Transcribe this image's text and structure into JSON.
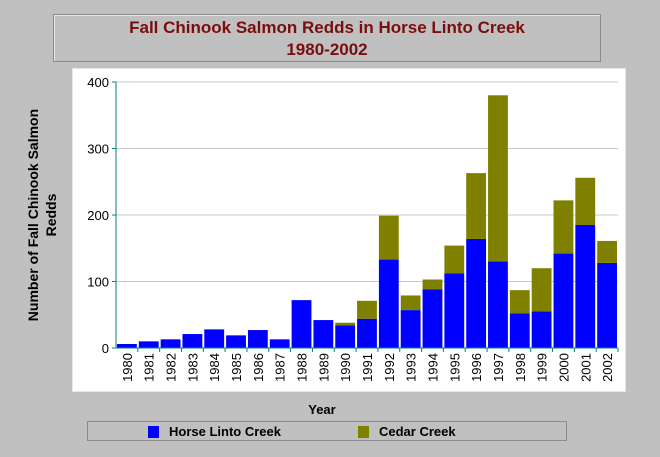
{
  "chart_data": {
    "type": "bar",
    "stacked": true,
    "title": "Fall Chinook Salmon Redds in Horse Linto Creek",
    "subtitle": "1980-2002",
    "xlabel": "Year",
    "ylabel": "Number of Fall Chinook Salmon Redds",
    "ylim": [
      0,
      400
    ],
    "yticks": [
      0,
      100,
      200,
      300,
      400
    ],
    "grid": true,
    "legend_position": "bottom",
    "categories": [
      "1980",
      "1981",
      "1982",
      "1983",
      "1984",
      "1985",
      "1986",
      "1987",
      "1988",
      "1989",
      "1990",
      "1991",
      "1992",
      "1993",
      "1994",
      "1995",
      "1996",
      "1997",
      "1998",
      "1999",
      "2000",
      "2001",
      "2002"
    ],
    "series": [
      {
        "name": "Horse Linto Creek",
        "color": "#0000ff",
        "values": [
          6,
          10,
          13,
          21,
          28,
          19,
          27,
          13,
          72,
          42,
          34,
          44,
          133,
          57,
          88,
          112,
          164,
          130,
          52,
          55,
          142,
          185,
          128
        ]
      },
      {
        "name": "Cedar Creek",
        "color": "#808000",
        "values": [
          0,
          0,
          0,
          0,
          0,
          0,
          0,
          0,
          0,
          0,
          4,
          27,
          66,
          22,
          15,
          42,
          99,
          250,
          35,
          65,
          80,
          71,
          33
        ]
      }
    ]
  }
}
